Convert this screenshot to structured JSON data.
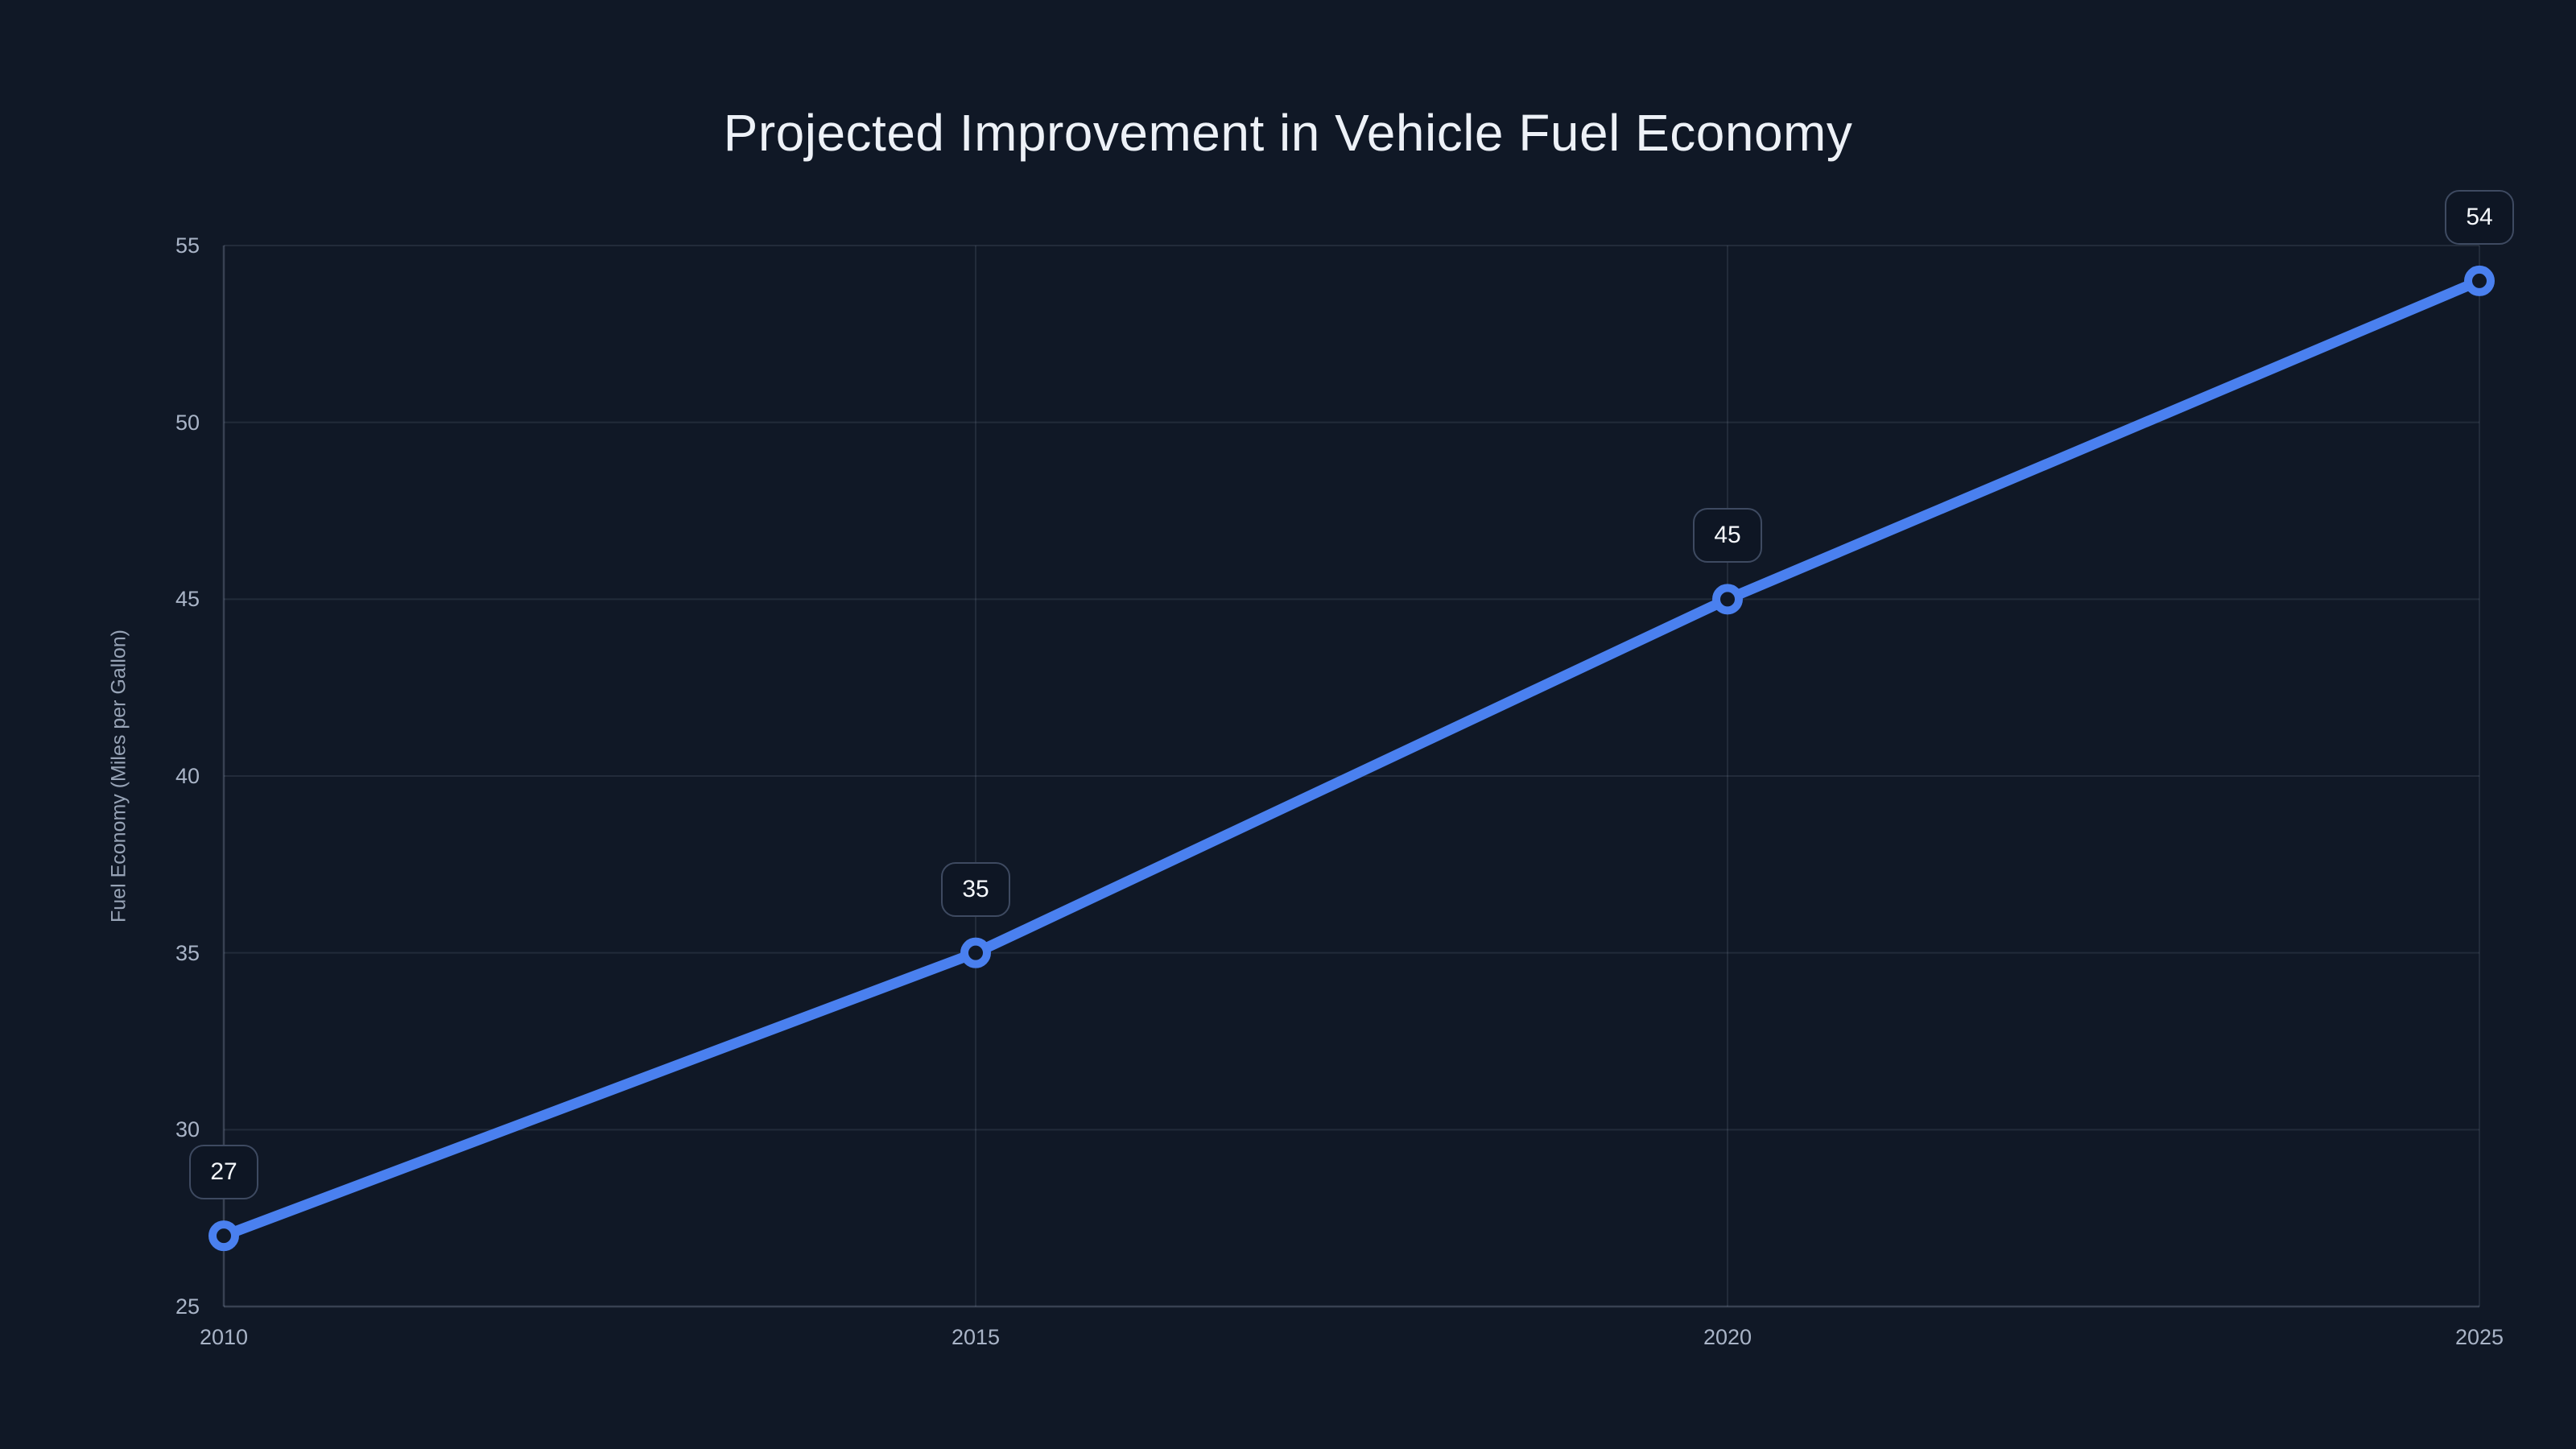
{
  "page": {
    "background": "#101826"
  },
  "chart_data": {
    "type": "line",
    "title": "Projected Improvement in Vehicle Fuel Economy",
    "xlabel": "",
    "ylabel": "Fuel Economy (Miles per Gallon)",
    "x": [
      2010,
      2015,
      2020,
      2025
    ],
    "xtick_labels": [
      "2010",
      "2015",
      "2020",
      "2025"
    ],
    "series": [
      {
        "name": "Fuel Economy",
        "values": [
          27,
          35,
          45,
          54
        ]
      }
    ],
    "point_labels": [
      "27",
      "35",
      "45",
      "54"
    ],
    "xlim": [
      2010,
      2025
    ],
    "ylim": [
      25,
      55
    ],
    "yticks": [
      25,
      30,
      35,
      40,
      45,
      50,
      55
    ],
    "grid": true,
    "legend": false,
    "colors": {
      "line": "#4a80ef",
      "marker_fill": "#101826",
      "grid": "rgba(148,163,184,0.14)",
      "axis": "rgba(148,163,184,0.30)",
      "tick_text": "#a9b4c7",
      "title_text": "#edf1f7",
      "badge_border": "#3e4a61",
      "badge_bg": "#0e1624",
      "badge_text": "#f5f8fc"
    }
  }
}
